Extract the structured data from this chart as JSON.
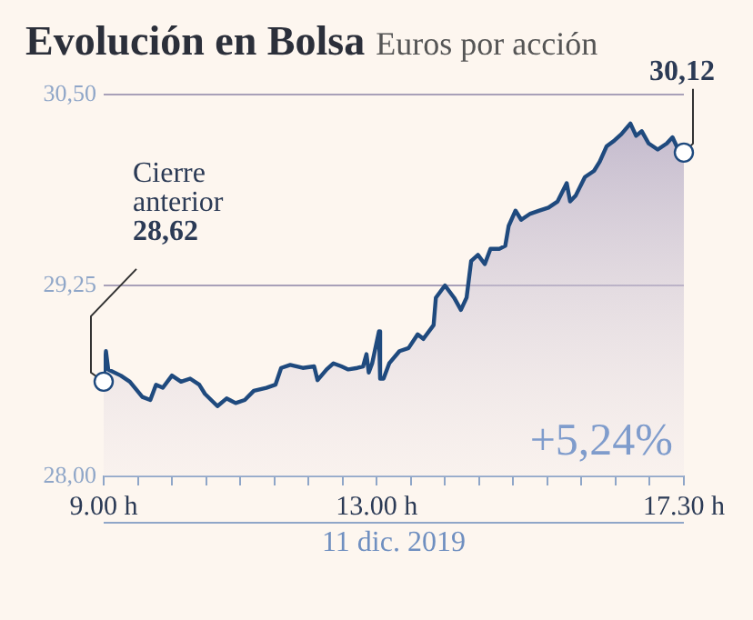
{
  "chart_data": {
    "type": "area",
    "title": "Evolución en Bolsa",
    "subtitle": "Euros por acción",
    "xlabel": "11 dic. 2019",
    "x": [
      "2019-12-11T09:00",
      "2019-12-11T09:02",
      "2019-12-11T09:04",
      "2019-12-11T09:15",
      "2019-12-11T09:23",
      "2019-12-11T09:34",
      "2019-12-11T09:41",
      "2019-12-11T09:46",
      "2019-12-11T09:52",
      "2019-12-11T10:00",
      "2019-12-11T10:08",
      "2019-12-11T10:16",
      "2019-12-11T10:24",
      "2019-12-11T10:29",
      "2019-12-11T10:40",
      "2019-12-11T10:48",
      "2019-12-11T10:56",
      "2019-12-11T11:04",
      "2019-12-11T11:12",
      "2019-12-11T11:23",
      "2019-12-11T11:31",
      "2019-12-11T11:36",
      "2019-12-11T11:44",
      "2019-12-11T11:55",
      "2019-12-11T12:05",
      "2019-12-11T12:08",
      "2019-12-11T12:16",
      "2019-12-11T12:22",
      "2019-12-11T12:29",
      "2019-12-11T12:35",
      "2019-12-11T12:43",
      "2019-12-11T12:48",
      "2019-12-11T12:51",
      "2019-12-11T12:53",
      "2019-12-11T12:56",
      "2019-12-11T13:02",
      "2019-12-11T13:03",
      "2019-12-11T13:06",
      "2019-12-11T13:11",
      "2019-12-11T13:20",
      "2019-12-11T13:28",
      "2019-12-11T13:36",
      "2019-12-11T13:41",
      "2019-12-11T13:50",
      "2019-12-11T13:52",
      "2019-12-11T14:00",
      "2019-12-11T14:08",
      "2019-12-11T14:14",
      "2019-12-11T14:19",
      "2019-12-11T14:23",
      "2019-12-11T14:29",
      "2019-12-11T14:35",
      "2019-12-11T14:40",
      "2019-12-11T14:48",
      "2019-12-11T14:53",
      "2019-12-11T14:56",
      "2019-12-11T15:02",
      "2019-12-11T15:07",
      "2019-12-11T15:15",
      "2019-12-11T15:23",
      "2019-12-11T15:31",
      "2019-12-11T15:39",
      "2019-12-11T15:47",
      "2019-12-11T15:50",
      "2019-12-11T15:55",
      "2019-12-11T16:03",
      "2019-12-11T16:11",
      "2019-12-11T16:16",
      "2019-12-11T16:22",
      "2019-12-11T16:29",
      "2019-12-11T16:35",
      "2019-12-11T16:43",
      "2019-12-11T16:48",
      "2019-12-11T16:53",
      "2019-12-11T16:59",
      "2019-12-11T17:07",
      "2019-12-11T17:15",
      "2019-12-11T17:20",
      "2019-12-11T17:25",
      "2019-12-11T17:30"
    ],
    "series": [
      {
        "color": "#1f4a7e",
        "values": [
          28.63,
          28.82,
          28.7,
          28.66,
          28.62,
          28.52,
          28.5,
          28.6,
          28.58,
          28.66,
          28.62,
          28.64,
          28.6,
          28.54,
          28.46,
          28.51,
          28.48,
          28.5,
          28.56,
          28.58,
          28.6,
          28.71,
          28.73,
          28.71,
          28.72,
          28.63,
          28.7,
          28.74,
          28.72,
          28.7,
          28.71,
          28.72,
          28.8,
          28.68,
          28.74,
          28.95,
          28.64,
          28.64,
          28.74,
          28.82,
          28.84,
          28.93,
          28.9,
          28.99,
          29.17,
          29.25,
          29.17,
          29.09,
          29.17,
          29.41,
          29.45,
          29.39,
          29.49,
          29.49,
          29.51,
          29.64,
          29.74,
          29.68,
          29.72,
          29.74,
          29.76,
          29.8,
          29.92,
          29.8,
          29.84,
          29.96,
          30.0,
          30.06,
          30.16,
          30.2,
          30.24,
          30.31,
          30.23,
          30.26,
          30.18,
          30.14,
          30.18,
          30.22,
          30.14,
          30.12
        ]
      }
    ],
    "xlim": [
      "2019-12-11T09:00",
      "2019-12-11T17:30"
    ],
    "xticks": [
      {
        "value": "2019-12-11T09:00",
        "label": "9.00 h"
      },
      {
        "value": "2019-12-11T09:30",
        "label": null
      },
      {
        "value": "2019-12-11T10:00",
        "label": null
      },
      {
        "value": "2019-12-11T10:30",
        "label": null
      },
      {
        "value": "2019-12-11T11:00",
        "label": null
      },
      {
        "value": "2019-12-11T11:30",
        "label": null
      },
      {
        "value": "2019-12-11T12:00",
        "label": null
      },
      {
        "value": "2019-12-11T12:30",
        "label": null
      },
      {
        "value": "2019-12-11T13:00",
        "label": "13.00 h"
      },
      {
        "value": "2019-12-11T13:30",
        "label": null
      },
      {
        "value": "2019-12-11T14:00",
        "label": null
      },
      {
        "value": "2019-12-11T14:30",
        "label": null
      },
      {
        "value": "2019-12-11T15:00",
        "label": null
      },
      {
        "value": "2019-12-11T15:30",
        "label": null
      },
      {
        "value": "2019-12-11T16:00",
        "label": null
      },
      {
        "value": "2019-12-11T16:30",
        "label": null
      },
      {
        "value": "2019-12-11T17:00",
        "label": null
      },
      {
        "value": "2019-12-11T17:30",
        "label": "17.30 h"
      }
    ],
    "ylim": [
      28,
      30.5
    ],
    "yticks": [
      {
        "value": 28,
        "label": "28,00"
      },
      {
        "value": 29.25,
        "label": "29,25"
      },
      {
        "value": 30.5,
        "label": "30,50"
      }
    ],
    "grid": "y",
    "legend": false,
    "marker": "none",
    "line_style": "solid",
    "annotations": [
      {
        "text": "Cierre anterior 28,62",
        "x": "2019-12-11T09:00",
        "y": 28.62
      },
      {
        "text": "30,12",
        "x": "2019-12-11T17:30",
        "y": 30.12
      },
      "+5,24%"
    ]
  }
}
